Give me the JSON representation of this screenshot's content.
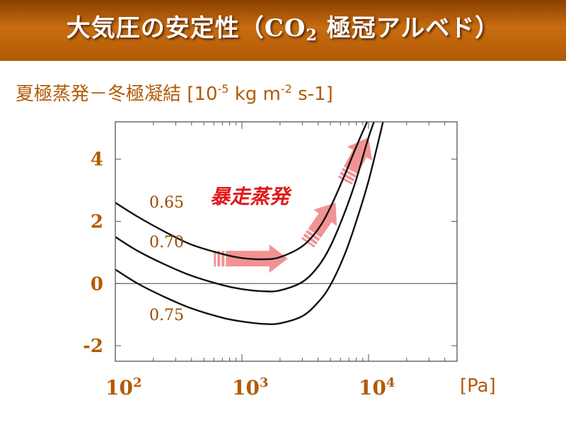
{
  "slide": {
    "title_main": "大気圧の安定性（CO",
    "title_sub": "2",
    "title_rest": " 極冠アルベド）",
    "subtitle_text": "夏極蒸発－冬極凝結 [10",
    "subtitle_exp1": "-5",
    "subtitle_mid": " kg m",
    "subtitle_exp2": "-2",
    "subtitle_end": " s-1]"
  },
  "chart_data": {
    "type": "line",
    "title": "",
    "xlabel": "[Pa]",
    "ylabel": "",
    "xscale": "log",
    "xlim": [
      100,
      50000
    ],
    "ylim": [
      -2.5,
      5.2
    ],
    "grid": false,
    "x_ticks": [
      {
        "value": 100,
        "base": "10",
        "exp": "2"
      },
      {
        "value": 1000,
        "base": "10",
        "exp": "3"
      },
      {
        "value": 10000,
        "base": "10",
        "exp": "4"
      }
    ],
    "y_ticks": [
      {
        "value": 4,
        "label": "4"
      },
      {
        "value": 2,
        "label": "2"
      },
      {
        "value": 0,
        "label": "0"
      },
      {
        "value": -2,
        "label": "-2"
      }
    ],
    "reference_line": {
      "y": 0
    },
    "series": [
      {
        "name": "0.65",
        "x": [
          100,
          150,
          250,
          400,
          700,
          1000,
          1500,
          2000,
          3000,
          4000,
          5000,
          6500,
          8000,
          10000,
          11500
        ],
        "values": [
          2.6,
          2.15,
          1.65,
          1.25,
          0.95,
          0.82,
          0.78,
          0.85,
          1.2,
          1.75,
          2.45,
          3.5,
          4.4,
          5.3,
          5.8
        ]
      },
      {
        "name": "0.70",
        "x": [
          100,
          150,
          250,
          400,
          700,
          1000,
          1500,
          2000,
          3000,
          4000,
          5000,
          6500,
          8000,
          10000,
          12500
        ],
        "values": [
          1.5,
          1.05,
          0.6,
          0.25,
          -0.05,
          -0.18,
          -0.25,
          -0.22,
          0.05,
          0.55,
          1.2,
          2.3,
          3.35,
          4.7,
          5.8
        ]
      },
      {
        "name": "0.75",
        "x": [
          100,
          150,
          250,
          400,
          700,
          1000,
          1500,
          2000,
          3000,
          4000,
          5000,
          6500,
          8000,
          10000,
          12500,
          14000
        ],
        "values": [
          0.45,
          0.0,
          -0.45,
          -0.8,
          -1.1,
          -1.22,
          -1.3,
          -1.28,
          -1.05,
          -0.6,
          -0.05,
          0.95,
          2.0,
          3.3,
          4.9,
          5.8
        ]
      }
    ],
    "annotations": [
      {
        "text": "暴走蒸発",
        "color": "#e01818",
        "x": 1500,
        "y": 2.75
      },
      {
        "arrow": "runaway-evaporation",
        "color": "#f08080",
        "path_x": [
          600,
          2300,
          3300,
          5500,
          6500,
          10000
        ],
        "path_y": [
          0.8,
          0.8,
          1.3,
          2.6,
          3.3,
          4.7
        ]
      }
    ]
  }
}
